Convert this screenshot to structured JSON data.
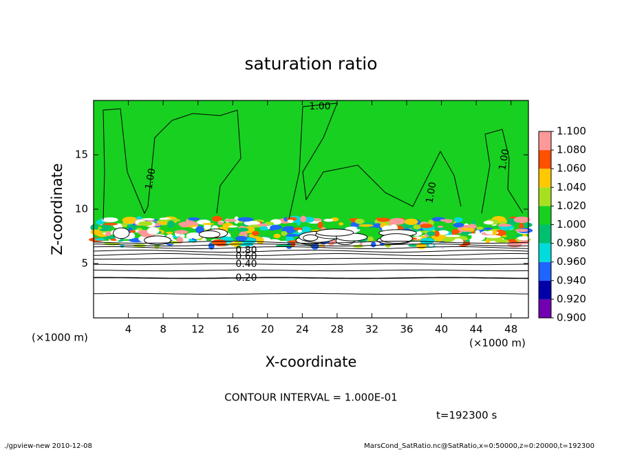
{
  "chart_data": {
    "type": "contour",
    "title": "saturation ratio",
    "xlabel": "X-coordinate",
    "ylabel": "Z-coordinate",
    "xunit": "(×1000 m)",
    "yunit": "(×1000 m)",
    "xlim": [
      0,
      50
    ],
    "ylim": [
      0,
      20
    ],
    "xticks": [
      4,
      8,
      12,
      16,
      20,
      24,
      28,
      32,
      36,
      40,
      44,
      48
    ],
    "yticks": [
      5,
      10,
      15
    ],
    "colorbar": {
      "ticks": [
        {
          "value": 0.9,
          "label": "0.900"
        },
        {
          "value": 0.92,
          "label": "0.920"
        },
        {
          "value": 0.94,
          "label": "0.940"
        },
        {
          "value": 0.96,
          "label": "0.960"
        },
        {
          "value": 0.98,
          "label": "0.980"
        },
        {
          "value": 1.0,
          "label": "1.000"
        },
        {
          "value": 1.02,
          "label": "1.020"
        },
        {
          "value": 1.04,
          "label": "1.040"
        },
        {
          "value": 1.06,
          "label": "1.060"
        },
        {
          "value": 1.08,
          "label": "1.080"
        },
        {
          "value": 1.1,
          "label": "1.100"
        }
      ],
      "colors": [
        "#7000b0",
        "#0000a8",
        "#1e64ff",
        "#00dcdc",
        "#00c070",
        "#18d020",
        "#a8e020",
        "#ffc800",
        "#ff5000",
        "#ff9898"
      ]
    },
    "contour_labels": [
      "1.00",
      "1.00",
      "1.00",
      "1.00",
      "0.20",
      "0.40",
      "0.60",
      "0.80"
    ],
    "contour_interval": "CONTOUR INTERVAL = 1.000E-01",
    "time": "t=192300 s",
    "footer_left": "./gpview-new   2010-12-08",
    "footer_right": "MarsCond_SatRatio.nc@SatRatio,x=0:50000,z=0:20000,t=192300"
  }
}
